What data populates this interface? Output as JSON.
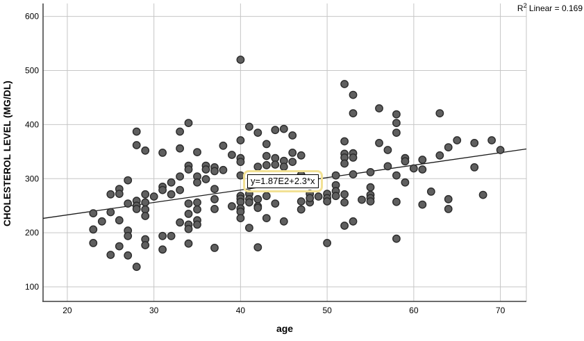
{
  "chart_data": {
    "type": "scatter",
    "title": "",
    "xlabel": "age",
    "ylabel": "CHOLESTEROL LEVEL (MG/DL)",
    "x_ticks": [
      20,
      30,
      40,
      50,
      60,
      70
    ],
    "y_ticks": [
      100,
      200,
      300,
      400,
      500,
      600
    ],
    "x_range": [
      17.2,
      73.0
    ],
    "y_range": [
      73,
      624
    ],
    "grid": true,
    "legend_position": "none",
    "colors": {
      "point_fill": "#5f5f5f",
      "point_stroke": "#2b2b2b",
      "gridline": "#c6c6c6",
      "axis": "#3d3d3d",
      "frame_light": "#c6c6c6",
      "fit_line": "#1a1a1a",
      "highlight_ring": "#f2e194"
    },
    "fit_line": {
      "intercept": 187,
      "slope": 2.3
    },
    "annotations": {
      "equation_label": "y=1.87E2+2.3*x",
      "r_squared": {
        "base": "R",
        "sup": "2",
        "rest": " Linear = 0.169"
      }
    },
    "points": [
      [
        34,
        403
      ],
      [
        33,
        387
      ],
      [
        28,
        387
      ],
      [
        28,
        362
      ],
      [
        29,
        352
      ],
      [
        31,
        348
      ],
      [
        33,
        356
      ],
      [
        35,
        349
      ],
      [
        40,
        520
      ],
      [
        52,
        475
      ],
      [
        53,
        455
      ],
      [
        53,
        421
      ],
      [
        41,
        396
      ],
      [
        42,
        385
      ],
      [
        44,
        390
      ],
      [
        45,
        392
      ],
      [
        46,
        380
      ],
      [
        40,
        371
      ],
      [
        43,
        364
      ],
      [
        38,
        361
      ],
      [
        52,
        369
      ],
      [
        39,
        344
      ],
      [
        40,
        338
      ],
      [
        40,
        331
      ],
      [
        43,
        342
      ],
      [
        44,
        338
      ],
      [
        45,
        333
      ],
      [
        46,
        348
      ],
      [
        46,
        331
      ],
      [
        47,
        343
      ],
      [
        52,
        346
      ],
      [
        52,
        339
      ],
      [
        53,
        347
      ],
      [
        53,
        339
      ],
      [
        52,
        328
      ],
      [
        56,
        430
      ],
      [
        58,
        419
      ],
      [
        58,
        403
      ],
      [
        58,
        385
      ],
      [
        63,
        421
      ],
      [
        56,
        366
      ],
      [
        57,
        353
      ],
      [
        65,
        371
      ],
      [
        64,
        358
      ],
      [
        67,
        366
      ],
      [
        69,
        371
      ],
      [
        70,
        353
      ],
      [
        63,
        343
      ],
      [
        59,
        338
      ],
      [
        59,
        332
      ],
      [
        61,
        335
      ],
      [
        57,
        323
      ],
      [
        60,
        319
      ],
      [
        61,
        317
      ],
      [
        67,
        321
      ],
      [
        27,
        297
      ],
      [
        26,
        281
      ],
      [
        26,
        272
      ],
      [
        25,
        271
      ],
      [
        23,
        236
      ],
      [
        24,
        221
      ],
      [
        25,
        238
      ],
      [
        26,
        223
      ],
      [
        23,
        206
      ],
      [
        27,
        254
      ],
      [
        28,
        259
      ],
      [
        28,
        250
      ],
      [
        28,
        244
      ],
      [
        29,
        271
      ],
      [
        30,
        267
      ],
      [
        29,
        256
      ],
      [
        29,
        243
      ],
      [
        29,
        231
      ],
      [
        31,
        285
      ],
      [
        31,
        279
      ],
      [
        32,
        293
      ],
      [
        33,
        304
      ],
      [
        33,
        279
      ],
      [
        32,
        271
      ],
      [
        34,
        324
      ],
      [
        34,
        317
      ],
      [
        36,
        324
      ],
      [
        36,
        317
      ],
      [
        37,
        321
      ],
      [
        37,
        314
      ],
      [
        38,
        316
      ],
      [
        34,
        254
      ],
      [
        35,
        256
      ],
      [
        35,
        304
      ],
      [
        35,
        293
      ],
      [
        36,
        299
      ],
      [
        35,
        243
      ],
      [
        34,
        235
      ],
      [
        34,
        215
      ],
      [
        35,
        223
      ],
      [
        35,
        215
      ],
      [
        34,
        207
      ],
      [
        33,
        219
      ],
      [
        23,
        181
      ],
      [
        25,
        159
      ],
      [
        26,
        175
      ],
      [
        27,
        204
      ],
      [
        27,
        194
      ],
      [
        27,
        158
      ],
      [
        28,
        137
      ],
      [
        29,
        188
      ],
      [
        29,
        177
      ],
      [
        31,
        194
      ],
      [
        32,
        194
      ],
      [
        31,
        169
      ],
      [
        34,
        180
      ],
      [
        40,
        306
      ],
      [
        37,
        281
      ],
      [
        37,
        262
      ],
      [
        37,
        244
      ],
      [
        39,
        249
      ],
      [
        40,
        268
      ],
      [
        40,
        263
      ],
      [
        40,
        257
      ],
      [
        40,
        245
      ],
      [
        40,
        239
      ],
      [
        40,
        227
      ],
      [
        41,
        272
      ],
      [
        41,
        262
      ],
      [
        41,
        256
      ],
      [
        42,
        262
      ],
      [
        42,
        249
      ],
      [
        42,
        246
      ],
      [
        43,
        268
      ],
      [
        44,
        254
      ],
      [
        43,
        227
      ],
      [
        45,
        221
      ],
      [
        47,
        306
      ],
      [
        47,
        258
      ],
      [
        48,
        256
      ],
      [
        47,
        243
      ],
      [
        48,
        272
      ],
      [
        48,
        264
      ],
      [
        49,
        267
      ],
      [
        50,
        272
      ],
      [
        50,
        264
      ],
      [
        50,
        258
      ],
      [
        51,
        288
      ],
      [
        51,
        277
      ],
      [
        51,
        268
      ],
      [
        52,
        271
      ],
      [
        52,
        256
      ],
      [
        54,
        261
      ],
      [
        55,
        284
      ],
      [
        52,
        213
      ],
      [
        53,
        221
      ],
      [
        50,
        181
      ],
      [
        42,
        173
      ],
      [
        37,
        172
      ],
      [
        41,
        209
      ],
      [
        42,
        322
      ],
      [
        43,
        325
      ],
      [
        44,
        326
      ],
      [
        45,
        322
      ],
      [
        47,
        307
      ],
      [
        51,
        306
      ],
      [
        53,
        308
      ],
      [
        55,
        312
      ],
      [
        58,
        306
      ],
      [
        59,
        293
      ],
      [
        55,
        270
      ],
      [
        55,
        264
      ],
      [
        55,
        258
      ],
      [
        58,
        257
      ],
      [
        62,
        276
      ],
      [
        61,
        252
      ],
      [
        64,
        262
      ],
      [
        64,
        244
      ],
      [
        68,
        270
      ],
      [
        58,
        189
      ]
    ]
  }
}
